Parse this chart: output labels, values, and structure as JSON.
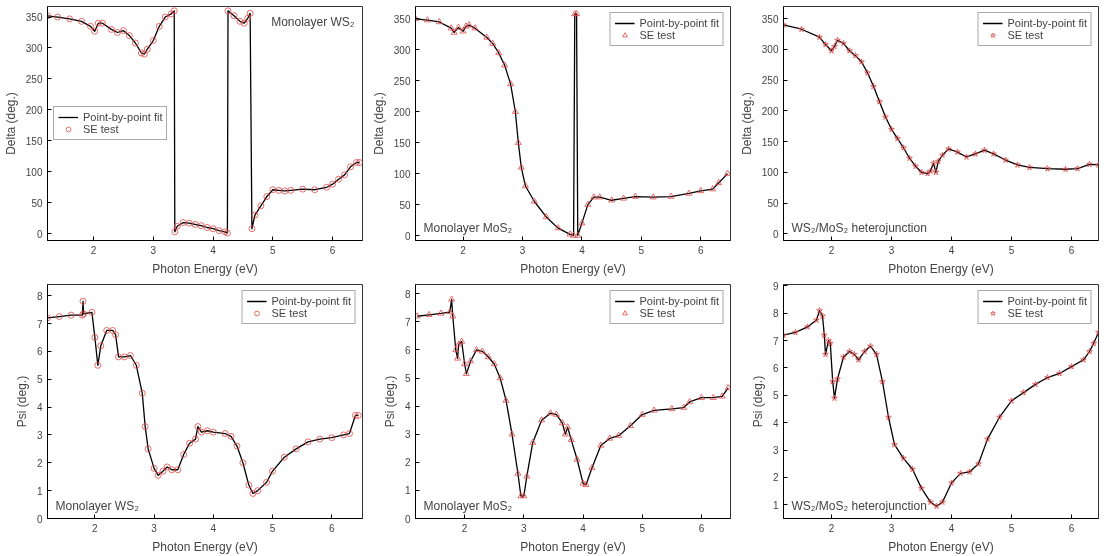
{
  "chart_data": [
    {
      "type": "line",
      "xlabel": "Photon Energy (eV)",
      "ylabel": "Delta (deg.)",
      "annotations": [
        "Monolayer WS₂"
      ],
      "legend": "left",
      "xlim": [
        1.23,
        6.5
      ],
      "ylim": [
        -11,
        367
      ],
      "xticks": [
        2,
        3,
        4,
        5,
        6
      ],
      "yticks": [
        0,
        50,
        100,
        150,
        200,
        250,
        300,
        350
      ],
      "x": [
        1.23,
        1.4,
        1.6,
        1.8,
        1.95,
        2.02,
        2.08,
        2.15,
        2.3,
        2.4,
        2.5,
        2.6,
        2.7,
        2.8,
        2.85,
        2.9,
        3.0,
        3.1,
        3.2,
        3.3,
        3.35,
        3.36,
        3.4,
        3.5,
        3.6,
        3.7,
        3.8,
        3.9,
        4.0,
        4.1,
        4.2,
        4.24,
        4.25,
        4.35,
        4.45,
        4.52,
        4.58,
        4.62,
        4.65,
        4.7,
        4.8,
        4.9,
        5.0,
        5.1,
        5.2,
        5.3,
        5.5,
        5.7,
        5.9,
        6.0,
        6.1,
        6.2,
        6.3,
        6.4,
        6.45
      ],
      "series": [
        {
          "name": "Point-by-point fit",
          "color": "#000000",
          "values": [
            352,
            350,
            347,
            343,
            335,
            327,
            340,
            340,
            330,
            325,
            328,
            320,
            308,
            292,
            290,
            298,
            312,
            335,
            350,
            355,
            360,
            3,
            12,
            18,
            17,
            15,
            13,
            10,
            8,
            5,
            3,
            1,
            360,
            352,
            343,
            340,
            348,
            356,
            8,
            30,
            45,
            60,
            71,
            70,
            69,
            70,
            72,
            71,
            75,
            80,
            88,
            95,
            108,
            115,
            115
          ]
        },
        {
          "name": "SE test",
          "type": "scatter",
          "marker": "circle",
          "color": "#e04848",
          "values": [
            352,
            350,
            347,
            343,
            335,
            327,
            340,
            340,
            330,
            325,
            328,
            320,
            308,
            292,
            290,
            298,
            312,
            335,
            350,
            355,
            360,
            3,
            12,
            18,
            17,
            15,
            13,
            10,
            8,
            5,
            3,
            1,
            360,
            352,
            343,
            340,
            348,
            356,
            8,
            30,
            45,
            60,
            71,
            70,
            69,
            70,
            72,
            71,
            75,
            80,
            88,
            95,
            108,
            115,
            115
          ]
        }
      ]
    },
    {
      "type": "line",
      "xlabel": "Photon Energy (eV)",
      "ylabel": "Delta (deg.)",
      "annotations": [
        "Monolayer MoS₂"
      ],
      "legend": "top right",
      "xlim": [
        1.2,
        6.5
      ],
      "ylim": [
        -8,
        370
      ],
      "xticks": [
        2,
        3,
        4,
        5,
        6
      ],
      "yticks": [
        0,
        50,
        100,
        150,
        200,
        250,
        300,
        350
      ],
      "x": [
        1.2,
        1.4,
        1.6,
        1.8,
        1.85,
        1.92,
        2.0,
        2.05,
        2.1,
        2.2,
        2.4,
        2.5,
        2.6,
        2.7,
        2.8,
        2.88,
        2.93,
        2.98,
        3.05,
        3.2,
        3.4,
        3.6,
        3.8,
        3.86,
        3.88,
        3.91,
        3.93,
        4.0,
        4.1,
        4.2,
        4.3,
        4.5,
        4.7,
        4.9,
        5.2,
        5.5,
        5.8,
        6.0,
        6.2,
        6.3,
        6.45
      ],
      "series": [
        {
          "name": "Point-by-point fit",
          "color": "#000000",
          "values": [
            350,
            348,
            345,
            335,
            328,
            336,
            330,
            338,
            340,
            335,
            320,
            310,
            295,
            275,
            245,
            200,
            150,
            110,
            80,
            55,
            30,
            12,
            2,
            0,
            358,
            358,
            0,
            20,
            50,
            62,
            62,
            57,
            60,
            63,
            62,
            63,
            68,
            72,
            75,
            85,
            100
          ]
        },
        {
          "name": "SE test",
          "type": "scatter",
          "marker": "triangle",
          "color": "#e04848",
          "values": [
            350,
            348,
            345,
            335,
            328,
            336,
            330,
            338,
            340,
            335,
            320,
            310,
            295,
            275,
            245,
            200,
            150,
            110,
            80,
            55,
            30,
            12,
            2,
            0,
            358,
            358,
            0,
            20,
            50,
            62,
            62,
            57,
            60,
            63,
            62,
            63,
            68,
            72,
            75,
            85,
            100
          ]
        }
      ]
    },
    {
      "type": "line",
      "xlabel": "Photon Energy (eV)",
      "ylabel": "Delta (deg.)",
      "annotations": [
        "WS₂/MoS₂ heterojunction"
      ],
      "legend": "top right",
      "xlim": [
        1.2,
        6.45
      ],
      "ylim": [
        -11,
        370
      ],
      "xticks": [
        2,
        3,
        4,
        5,
        6
      ],
      "yticks": [
        0,
        50,
        100,
        150,
        200,
        250,
        300,
        350
      ],
      "x": [
        1.2,
        1.5,
        1.8,
        1.9,
        2.0,
        2.05,
        2.1,
        2.2,
        2.3,
        2.4,
        2.5,
        2.6,
        2.7,
        2.8,
        2.9,
        3.0,
        3.1,
        3.2,
        3.3,
        3.4,
        3.5,
        3.6,
        3.65,
        3.7,
        3.74,
        3.78,
        3.85,
        3.95,
        4.1,
        4.25,
        4.4,
        4.55,
        4.7,
        4.9,
        5.1,
        5.3,
        5.6,
        5.9,
        6.1,
        6.3,
        6.45
      ],
      "series": [
        {
          "name": "Point-by-point fit",
          "color": "#000000",
          "values": [
            340,
            333,
            320,
            308,
            298,
            305,
            315,
            310,
            298,
            290,
            280,
            262,
            240,
            215,
            190,
            170,
            155,
            140,
            123,
            110,
            100,
            98,
            102,
            115,
            100,
            118,
            128,
            138,
            133,
            125,
            130,
            136,
            130,
            120,
            112,
            108,
            106,
            105,
            106,
            113,
            112
          ]
        },
        {
          "name": "SE test",
          "type": "scatter",
          "marker": "star",
          "color": "#e04848",
          "values": [
            340,
            333,
            320,
            308,
            298,
            305,
            315,
            310,
            298,
            290,
            280,
            262,
            240,
            215,
            190,
            170,
            155,
            140,
            123,
            110,
            100,
            98,
            102,
            115,
            100,
            118,
            128,
            138,
            133,
            125,
            130,
            136,
            130,
            120,
            112,
            108,
            106,
            105,
            106,
            113,
            112
          ]
        }
      ]
    },
    {
      "type": "line",
      "xlabel": "Photon Energy (eV)",
      "ylabel": "Psi (deg.)",
      "annotations": [
        "Monolayer WS₂"
      ],
      "legend": "top right",
      "xlim": [
        1.2,
        6.52
      ],
      "ylim": [
        0,
        8.4
      ],
      "xticks": [
        2,
        3,
        4,
        5,
        6
      ],
      "yticks": [
        0,
        1,
        2,
        3,
        4,
        5,
        6,
        7,
        8
      ],
      "x": [
        1.2,
        1.4,
        1.6,
        1.79,
        1.8,
        1.81,
        1.95,
        2.0,
        2.05,
        2.1,
        2.2,
        2.3,
        2.35,
        2.4,
        2.5,
        2.6,
        2.7,
        2.8,
        2.85,
        2.9,
        3.0,
        3.07,
        3.15,
        3.22,
        3.3,
        3.4,
        3.5,
        3.6,
        3.7,
        3.74,
        3.8,
        3.9,
        4.0,
        4.2,
        4.3,
        4.4,
        4.5,
        4.6,
        4.67,
        4.75,
        4.9,
        5.0,
        5.2,
        5.4,
        5.6,
        5.8,
        6.0,
        6.2,
        6.3,
        6.4,
        6.45
      ],
      "series": [
        {
          "name": "Point-by-point fit",
          "color": "#000000",
          "values": [
            7.2,
            7.25,
            7.3,
            7.3,
            7.8,
            7.35,
            7.4,
            6.5,
            5.5,
            6.2,
            6.75,
            6.75,
            6.6,
            5.8,
            5.8,
            5.85,
            5.5,
            4.5,
            3.3,
            2.5,
            1.8,
            1.55,
            1.7,
            1.85,
            1.75,
            1.75,
            2.3,
            2.7,
            2.85,
            3.3,
            3.1,
            3.15,
            3.1,
            3.05,
            2.95,
            2.6,
            2.0,
            1.2,
            0.9,
            1.0,
            1.3,
            1.7,
            2.2,
            2.5,
            2.75,
            2.85,
            2.9,
            3.0,
            3.05,
            3.7,
            3.7
          ]
        },
        {
          "name": "SE test",
          "type": "scatter",
          "marker": "circle",
          "color": "#e04848",
          "values": [
            7.2,
            7.25,
            7.3,
            7.3,
            7.8,
            7.35,
            7.4,
            6.5,
            5.5,
            6.2,
            6.75,
            6.75,
            6.6,
            5.8,
            5.8,
            5.85,
            5.5,
            4.5,
            3.3,
            2.5,
            1.8,
            1.55,
            1.7,
            1.85,
            1.75,
            1.75,
            2.3,
            2.7,
            2.85,
            3.3,
            3.1,
            3.15,
            3.1,
            3.05,
            2.95,
            2.6,
            2.0,
            1.2,
            0.9,
            1.0,
            1.3,
            1.7,
            2.2,
            2.5,
            2.75,
            2.85,
            2.9,
            3.0,
            3.05,
            3.7,
            3.7
          ]
        }
      ]
    },
    {
      "type": "line",
      "xlabel": "Photon Energy (eV)",
      "ylabel": "Psi (deg.)",
      "annotations": [
        "Monolayer MoS₂"
      ],
      "legend": "top right",
      "xlim": [
        1.17,
        6.49
      ],
      "ylim": [
        0,
        8.33
      ],
      "xticks": [
        2,
        3,
        4,
        5,
        6
      ],
      "yticks": [
        0,
        1,
        2,
        3,
        4,
        5,
        6,
        7,
        8
      ],
      "x": [
        1.2,
        1.4,
        1.6,
        1.75,
        1.78,
        1.8,
        1.85,
        1.88,
        1.9,
        1.95,
        2.0,
        2.03,
        2.1,
        2.2,
        2.3,
        2.4,
        2.5,
        2.6,
        2.7,
        2.8,
        2.9,
        2.95,
        3.0,
        3.05,
        3.15,
        3.3,
        3.45,
        3.55,
        3.65,
        3.7,
        3.74,
        3.8,
        3.9,
        4.0,
        4.05,
        4.15,
        4.3,
        4.45,
        4.6,
        4.8,
        5.0,
        5.2,
        5.5,
        5.7,
        5.8,
        6.0,
        6.2,
        6.35,
        6.45
      ],
      "series": [
        {
          "name": "Point-by-point fit",
          "color": "#000000",
          "values": [
            7.2,
            7.25,
            7.3,
            7.35,
            7.8,
            7.2,
            6.0,
            5.7,
            6.2,
            6.3,
            5.5,
            5.15,
            5.6,
            6.0,
            5.95,
            5.75,
            5.5,
            5.0,
            4.2,
            3.0,
            1.6,
            0.8,
            0.8,
            1.5,
            2.7,
            3.5,
            3.75,
            3.7,
            3.4,
            3.0,
            3.25,
            2.8,
            2.1,
            1.25,
            1.2,
            1.8,
            2.6,
            2.85,
            2.95,
            3.3,
            3.7,
            3.85,
            3.9,
            3.95,
            4.15,
            4.3,
            4.3,
            4.35,
            4.65
          ]
        },
        {
          "name": "SE test",
          "type": "scatter",
          "marker": "triangle",
          "color": "#e04848",
          "values": [
            7.2,
            7.25,
            7.3,
            7.35,
            7.8,
            7.2,
            6.0,
            5.7,
            6.2,
            6.3,
            5.5,
            5.15,
            5.6,
            6.0,
            5.95,
            5.75,
            5.5,
            5.0,
            4.2,
            3.0,
            1.6,
            0.8,
            0.8,
            1.5,
            2.7,
            3.5,
            3.75,
            3.7,
            3.4,
            3.0,
            3.25,
            2.8,
            2.1,
            1.25,
            1.2,
            1.8,
            2.6,
            2.85,
            2.95,
            3.3,
            3.7,
            3.85,
            3.9,
            3.95,
            4.15,
            4.3,
            4.3,
            4.35,
            4.65
          ]
        }
      ]
    },
    {
      "type": "line",
      "xlabel": "Photon Energy (eV)",
      "ylabel": "Psi (deg.)",
      "annotations": [
        "WS₂/MoS₂ heterojunction"
      ],
      "legend": "top right",
      "xlim": [
        1.2,
        6.45
      ],
      "ylim": [
        0.5,
        9.05
      ],
      "xticks": [
        2,
        3,
        4,
        5,
        6
      ],
      "yticks": [
        1,
        2,
        3,
        4,
        5,
        6,
        7,
        8,
        9
      ],
      "x": [
        1.2,
        1.4,
        1.6,
        1.75,
        1.8,
        1.85,
        1.88,
        1.9,
        1.95,
        1.98,
        2.02,
        2.05,
        2.1,
        2.2,
        2.3,
        2.38,
        2.45,
        2.55,
        2.65,
        2.75,
        2.85,
        2.95,
        3.05,
        3.2,
        3.35,
        3.5,
        3.65,
        3.75,
        3.85,
        4.0,
        4.15,
        4.3,
        4.45,
        4.6,
        4.8,
        5.0,
        5.2,
        5.4,
        5.6,
        5.8,
        6.0,
        6.2,
        6.3,
        6.37,
        6.45
      ],
      "series": [
        {
          "name": "Point-by-point fit",
          "color": "#000000",
          "values": [
            7.2,
            7.3,
            7.5,
            7.75,
            8.1,
            7.9,
            7.2,
            6.5,
            7.0,
            6.9,
            5.5,
            4.9,
            5.6,
            6.4,
            6.6,
            6.5,
            6.3,
            6.6,
            6.8,
            6.5,
            5.5,
            4.2,
            3.2,
            2.7,
            2.3,
            1.6,
            1.1,
            0.95,
            1.1,
            1.8,
            2.15,
            2.2,
            2.5,
            3.4,
            4.2,
            4.8,
            5.1,
            5.4,
            5.65,
            5.8,
            6.05,
            6.3,
            6.6,
            6.9,
            7.3
          ]
        },
        {
          "name": "SE test",
          "type": "scatter",
          "marker": "star",
          "color": "#e04848",
          "values": [
            7.2,
            7.3,
            7.5,
            7.75,
            8.1,
            7.9,
            7.2,
            6.5,
            7.0,
            6.9,
            5.5,
            4.9,
            5.6,
            6.4,
            6.6,
            6.5,
            6.3,
            6.6,
            6.8,
            6.5,
            5.5,
            4.2,
            3.2,
            2.7,
            2.3,
            1.6,
            1.1,
            0.95,
            1.1,
            1.8,
            2.15,
            2.2,
            2.5,
            3.4,
            4.2,
            4.8,
            5.1,
            5.4,
            5.65,
            5.8,
            6.05,
            6.3,
            6.6,
            6.9,
            7.3
          ]
        }
      ]
    }
  ]
}
